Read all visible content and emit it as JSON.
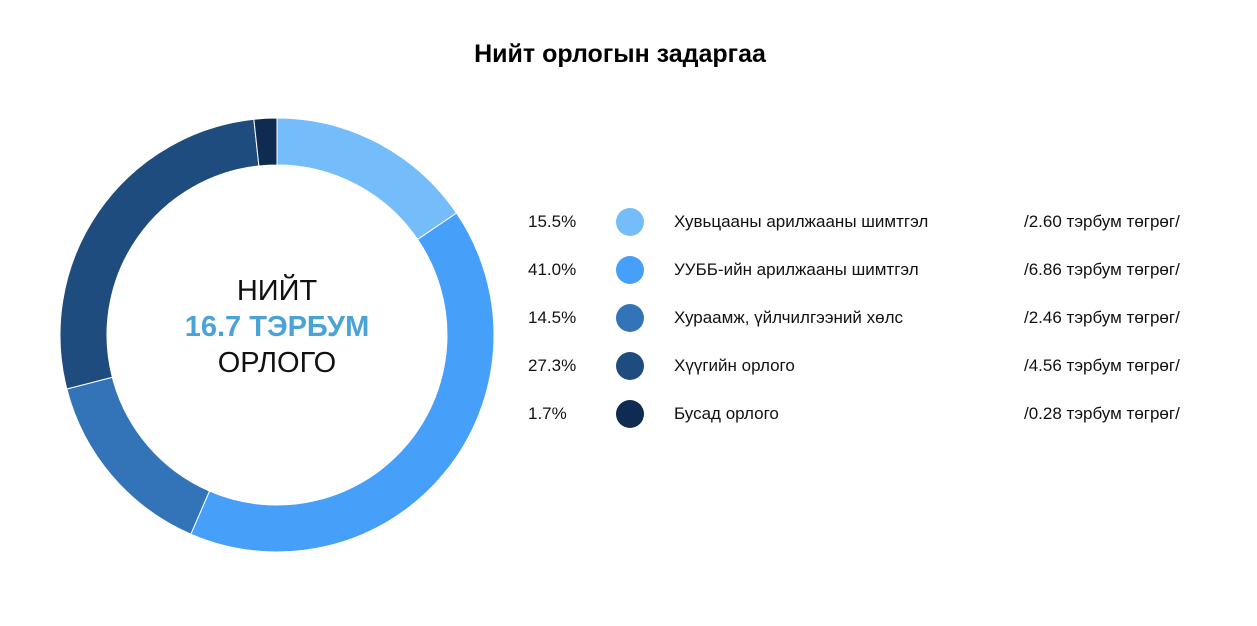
{
  "chart_data": {
    "type": "pie",
    "title": "Нийт орлогын задаргаа",
    "center_label": {
      "line1": "НИЙТ",
      "line2": "16.7 ТЭРБУМ",
      "line3": "ОРЛОГО"
    },
    "categories": [
      "Хувьцааны арилжааны шимтгэл",
      "УУББ-ийн арилжааны шимтгэл",
      "Хураамж, үйлчилгээний хөлс",
      "Хүүгийн орлого",
      "Бусад орлого"
    ],
    "values": [
      15.5,
      41.0,
      14.5,
      27.3,
      1.7
    ],
    "percent_labels": [
      "15.5%",
      "41.0%",
      "14.5%",
      "27.3%",
      "1.7%"
    ],
    "amount_labels": [
      "/2.60 тэрбум төгрөг/",
      "/6.86 тэрбум төгрөг/",
      "/2.46 тэрбум төгрөг/",
      "/4.56 тэрбум төгрөг/",
      "/0.28 тэрбум төгрөг/"
    ],
    "colors": [
      "#74bdfa",
      "#469ff8",
      "#3374b9",
      "#1f4c7e",
      "#0f2b52"
    ],
    "legend_position": "right"
  }
}
